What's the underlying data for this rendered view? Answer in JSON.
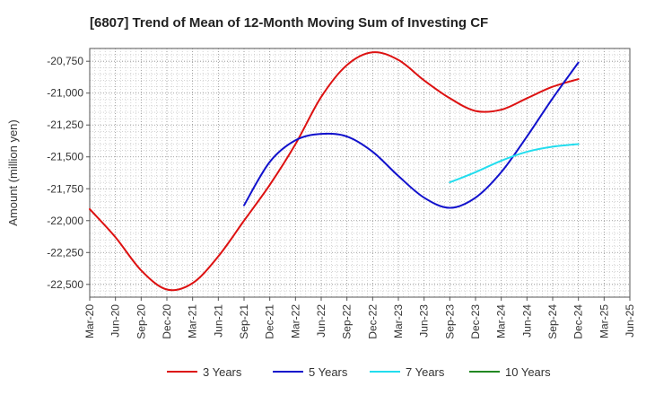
{
  "chart_data": {
    "type": "line",
    "title": "[6807]  Trend of Mean of 12-Month Moving Sum of Investing CF",
    "xlabel": "",
    "ylabel": "Amount (million yen)",
    "ylim": [
      -22600,
      -20650
    ],
    "yticks": [
      -20750,
      -21000,
      -21250,
      -21500,
      -21750,
      -22000,
      -22250,
      -22500
    ],
    "ytick_labels": [
      "-20,750",
      "-21,000",
      "-21,250",
      "-21,500",
      "-21,750",
      "-22,000",
      "-22,250",
      "-22,500"
    ],
    "x_categories": [
      "Mar-20",
      "Jun-20",
      "Sep-20",
      "Dec-20",
      "Mar-21",
      "Jun-21",
      "Sep-21",
      "Dec-21",
      "Mar-22",
      "Jun-22",
      "Sep-22",
      "Dec-22",
      "Mar-23",
      "Jun-23",
      "Sep-23",
      "Dec-23",
      "Mar-24",
      "Jun-24",
      "Sep-24",
      "Dec-24",
      "Mar-25",
      "Jun-25"
    ],
    "grid": true,
    "legend_position": "bottom",
    "series": [
      {
        "name": "3 Years",
        "color": "#dd1111",
        "points": [
          [
            0,
            -21910
          ],
          [
            1,
            -22130
          ],
          [
            2,
            -22390
          ],
          [
            3,
            -22540
          ],
          [
            4,
            -22490
          ],
          [
            5,
            -22280
          ],
          [
            6,
            -22000
          ],
          [
            7,
            -21720
          ],
          [
            8,
            -21400
          ],
          [
            9,
            -21030
          ],
          [
            10,
            -20780
          ],
          [
            11,
            -20680
          ],
          [
            12,
            -20740
          ],
          [
            13,
            -20900
          ],
          [
            14,
            -21040
          ],
          [
            15,
            -21140
          ],
          [
            16,
            -21130
          ],
          [
            17,
            -21040
          ],
          [
            18,
            -20950
          ],
          [
            19,
            -20890
          ]
        ]
      },
      {
        "name": "5 Years",
        "color": "#1111cc",
        "points": [
          [
            0,
            -21880
          ],
          [
            1,
            -21540
          ],
          [
            2,
            -21370
          ],
          [
            3,
            -21320
          ],
          [
            4,
            -21340
          ],
          [
            5,
            -21460
          ],
          [
            6,
            -21650
          ],
          [
            7,
            -21820
          ],
          [
            8,
            -21900
          ],
          [
            9,
            -21820
          ],
          [
            10,
            -21620
          ],
          [
            11,
            -21340
          ],
          [
            12,
            -21040
          ],
          [
            13,
            -20760
          ]
        ]
      },
      {
        "name": "7 Years",
        "color": "#22ddee",
        "points": [
          [
            0,
            -21700
          ],
          [
            1,
            -21620
          ],
          [
            2,
            -21530
          ],
          [
            3,
            -21460
          ],
          [
            4,
            -21420
          ],
          [
            5,
            -21400
          ]
        ]
      },
      {
        "name": "10 Years",
        "color": "#228822",
        "points": []
      }
    ]
  },
  "x_start_index": {
    "3 Years": 0,
    "5 Years": 6,
    "7 Years": 14,
    "10 Years": 0
  }
}
